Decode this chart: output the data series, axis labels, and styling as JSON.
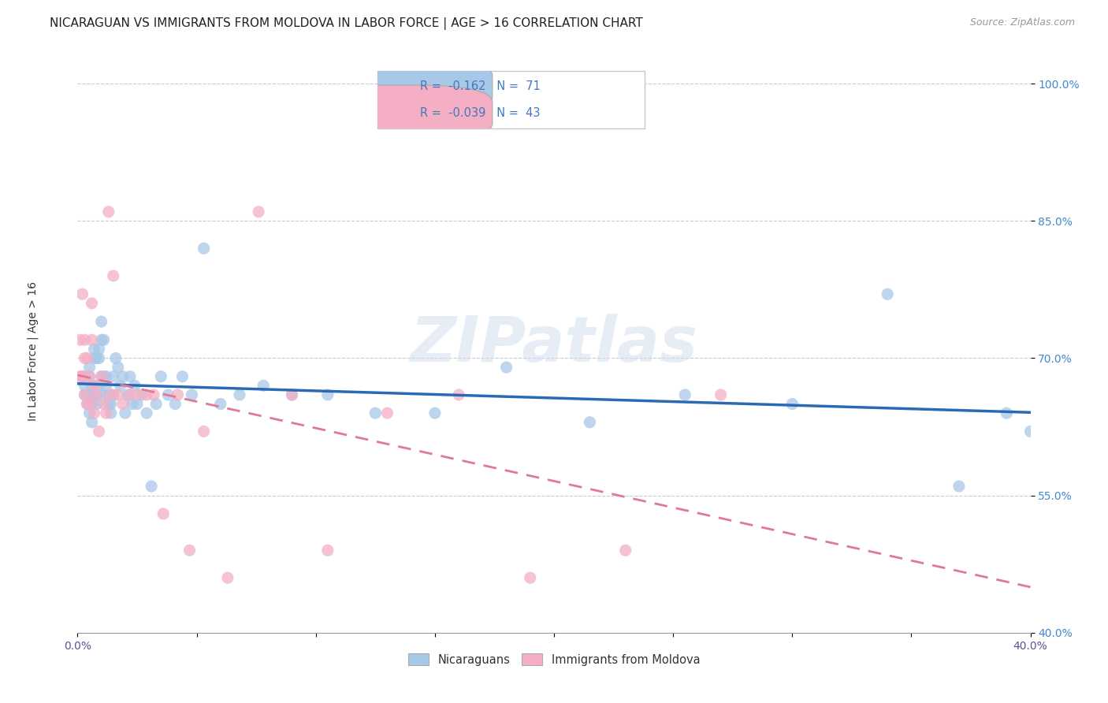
{
  "title": "NICARAGUAN VS IMMIGRANTS FROM MOLDOVA IN LABOR FORCE | AGE > 16 CORRELATION CHART",
  "source": "Source: ZipAtlas.com",
  "ylabel": "In Labor Force | Age > 16",
  "xlim": [
    0.0,
    0.4
  ],
  "ylim": [
    0.4,
    1.03
  ],
  "xticks": [
    0.0,
    0.05,
    0.1,
    0.15,
    0.2,
    0.25,
    0.3,
    0.35,
    0.4
  ],
  "xticklabels": [
    "0.0%",
    "",
    "",
    "",
    "",
    "",
    "",
    "",
    "40.0%"
  ],
  "yticks": [
    0.4,
    0.55,
    0.7,
    0.85,
    1.0
  ],
  "yticklabels": [
    "40.0%",
    "55.0%",
    "70.0%",
    "85.0%",
    "100.0%"
  ],
  "blue_color": "#a8c8e8",
  "pink_color": "#f4afc4",
  "blue_line_color": "#2a6ab5",
  "pink_line_color": "#e07898",
  "legend_R1": "R =  -0.162",
  "legend_N1": "N =  71",
  "legend_R2": "R =  -0.039",
  "legend_N2": "N =  43",
  "legend_label1": "Nicaraguans",
  "legend_label2": "Immigrants from Moldova",
  "watermark": "ZIPatlas",
  "blue_scatter_x": [
    0.002,
    0.003,
    0.003,
    0.004,
    0.004,
    0.005,
    0.005,
    0.005,
    0.006,
    0.006,
    0.006,
    0.007,
    0.007,
    0.007,
    0.007,
    0.008,
    0.008,
    0.008,
    0.008,
    0.009,
    0.009,
    0.009,
    0.01,
    0.01,
    0.01,
    0.01,
    0.011,
    0.011,
    0.012,
    0.012,
    0.013,
    0.013,
    0.014,
    0.014,
    0.015,
    0.015,
    0.016,
    0.017,
    0.018,
    0.019,
    0.02,
    0.021,
    0.022,
    0.023,
    0.024,
    0.025,
    0.027,
    0.029,
    0.031,
    0.033,
    0.035,
    0.038,
    0.041,
    0.044,
    0.048,
    0.053,
    0.06,
    0.068,
    0.078,
    0.09,
    0.105,
    0.125,
    0.15,
    0.18,
    0.215,
    0.255,
    0.3,
    0.34,
    0.37,
    0.39,
    0.4
  ],
  "blue_scatter_y": [
    0.68,
    0.66,
    0.67,
    0.65,
    0.66,
    0.68,
    0.69,
    0.64,
    0.67,
    0.63,
    0.65,
    0.66,
    0.7,
    0.71,
    0.67,
    0.65,
    0.66,
    0.7,
    0.66,
    0.71,
    0.7,
    0.67,
    0.68,
    0.74,
    0.66,
    0.72,
    0.72,
    0.68,
    0.67,
    0.68,
    0.66,
    0.65,
    0.64,
    0.65,
    0.68,
    0.66,
    0.7,
    0.69,
    0.67,
    0.68,
    0.64,
    0.66,
    0.68,
    0.65,
    0.67,
    0.65,
    0.66,
    0.64,
    0.56,
    0.65,
    0.68,
    0.66,
    0.65,
    0.68,
    0.66,
    0.82,
    0.65,
    0.66,
    0.67,
    0.66,
    0.66,
    0.64,
    0.64,
    0.69,
    0.63,
    0.66,
    0.65,
    0.77,
    0.56,
    0.64,
    0.62
  ],
  "pink_scatter_x": [
    0.001,
    0.001,
    0.002,
    0.002,
    0.002,
    0.003,
    0.003,
    0.003,
    0.004,
    0.004,
    0.005,
    0.005,
    0.006,
    0.006,
    0.007,
    0.007,
    0.008,
    0.009,
    0.01,
    0.011,
    0.012,
    0.013,
    0.014,
    0.015,
    0.017,
    0.019,
    0.022,
    0.025,
    0.029,
    0.032,
    0.036,
    0.042,
    0.047,
    0.053,
    0.063,
    0.076,
    0.09,
    0.105,
    0.13,
    0.16,
    0.19,
    0.23,
    0.27
  ],
  "pink_scatter_y": [
    0.68,
    0.72,
    0.68,
    0.77,
    0.68,
    0.66,
    0.7,
    0.72,
    0.65,
    0.7,
    0.65,
    0.68,
    0.72,
    0.76,
    0.67,
    0.64,
    0.66,
    0.62,
    0.68,
    0.65,
    0.64,
    0.86,
    0.66,
    0.79,
    0.66,
    0.65,
    0.66,
    0.66,
    0.66,
    0.66,
    0.53,
    0.66,
    0.49,
    0.62,
    0.46,
    0.86,
    0.66,
    0.49,
    0.64,
    0.66,
    0.46,
    0.49,
    0.66
  ],
  "title_fontsize": 11,
  "axis_label_fontsize": 10,
  "tick_fontsize": 10,
  "source_fontsize": 9
}
